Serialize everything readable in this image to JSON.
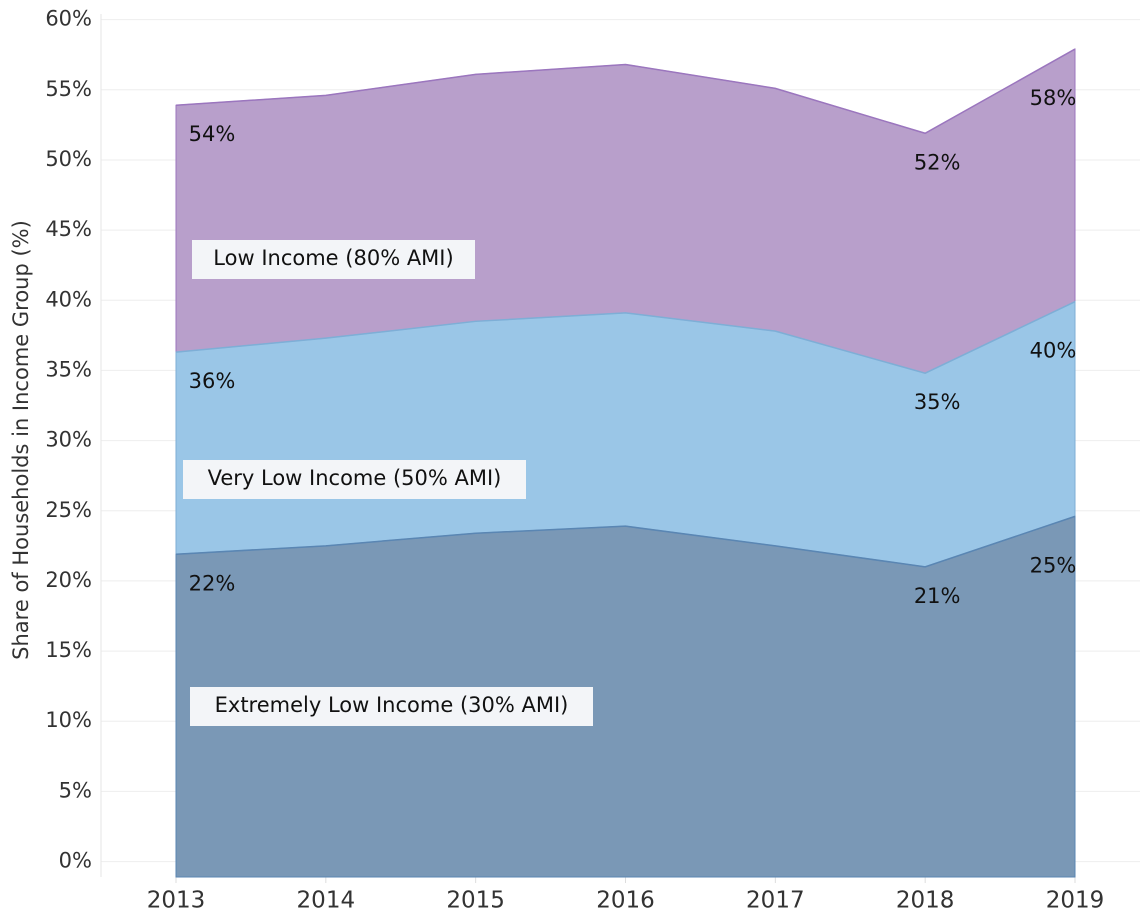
{
  "chart_data": {
    "type": "area",
    "y_label": "Share of Households in Income Group (%)",
    "categories": [
      "2013",
      "2014",
      "2015",
      "2016",
      "2017",
      "2018",
      "2019"
    ],
    "series": [
      {
        "name": "Extremely Low Income (30% AMI)",
        "color": "#7a98b6",
        "line_color": "#5a86b3",
        "values": [
          21.9,
          22.5,
          23.4,
          23.9,
          22.5,
          21.0,
          24.6
        ],
        "value_labels": [
          "22%",
          null,
          null,
          null,
          null,
          "21%",
          "25%"
        ]
      },
      {
        "name": "Very Low Income (50% AMI)",
        "color": "#9ac6e7",
        "line_color": "#7eaed6",
        "values": [
          36.3,
          37.3,
          38.5,
          39.1,
          37.8,
          34.8,
          39.9
        ],
        "value_labels": [
          "36%",
          null,
          null,
          null,
          null,
          "35%",
          "40%"
        ]
      },
      {
        "name": "Low Income (80% AMI)",
        "color": "#b89fcb",
        "line_color": "#9b76be",
        "values": [
          53.9,
          54.6,
          56.1,
          56.8,
          55.1,
          51.9,
          57.9
        ],
        "value_labels": [
          "54%",
          null,
          null,
          null,
          null,
          "52%",
          "58%"
        ]
      }
    ],
    "ylim": [
      -1.1,
      60.4
    ],
    "yticks": [
      {
        "value": 0,
        "label": "0%"
      },
      {
        "value": 5,
        "label": "5%"
      },
      {
        "value": 10,
        "label": "10%"
      },
      {
        "value": 15,
        "label": "15%"
      },
      {
        "value": 20,
        "label": "20%"
      },
      {
        "value": 25,
        "label": "25%"
      },
      {
        "value": 30,
        "label": "30%"
      },
      {
        "value": 35,
        "label": "35%"
      },
      {
        "value": 40,
        "label": "40%"
      },
      {
        "value": 45,
        "label": "45%"
      },
      {
        "value": 50,
        "label": "50%"
      },
      {
        "value": 55,
        "label": "55%"
      },
      {
        "value": 60,
        "label": "60%"
      }
    ],
    "grid": true
  }
}
